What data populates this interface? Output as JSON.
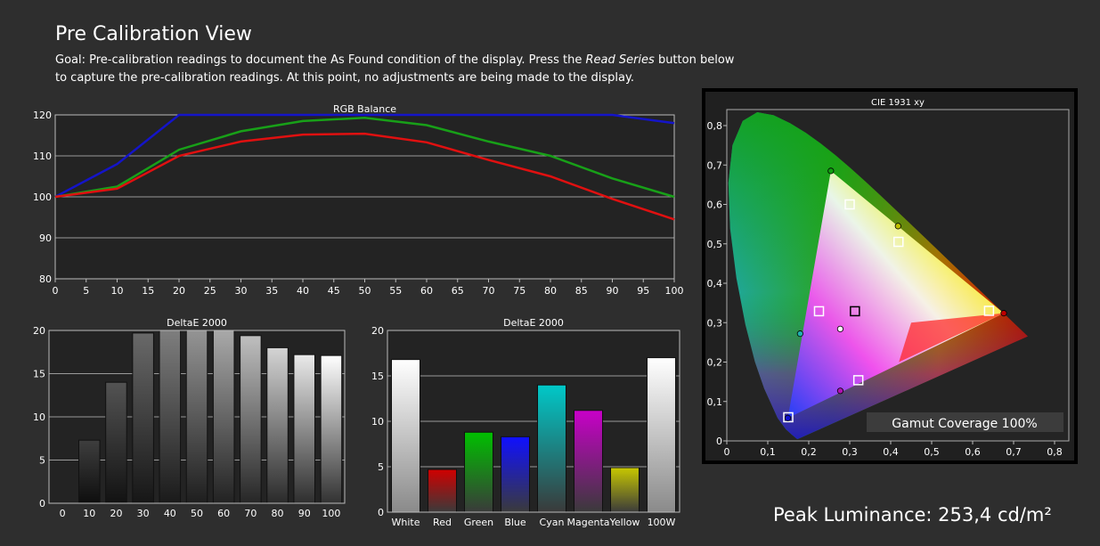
{
  "header": {
    "title": "Pre Calibration View",
    "goal_prefix": "Goal: Pre-calibration readings to document the As Found condition of the display. Press the ",
    "goal_emphasis": "Read Series",
    "goal_suffix": " button below to capture the pre-calibration readings. At this point, no adjustments are being made to the display."
  },
  "peak_luminance": "Peak Luminance: 253,4 cd/m²",
  "colors": {
    "background": "#2e2e2e",
    "plot_background": "#232323",
    "red": "#e01010",
    "green": "#18a018",
    "blue": "#1414c8"
  },
  "chart_data": [
    {
      "type": "line",
      "title": "RGB Balance",
      "xlabel": "",
      "ylabel": "",
      "x": [
        0,
        10,
        20,
        30,
        40,
        50,
        60,
        70,
        80,
        90,
        100
      ],
      "xticks": [
        "0",
        "5",
        "10",
        "15",
        "20",
        "25",
        "30",
        "35",
        "40",
        "45",
        "50",
        "55",
        "60",
        "65",
        "70",
        "75",
        "80",
        "85",
        "90",
        "95",
        "100"
      ],
      "yticks": [
        "80",
        "90",
        "100",
        "110",
        "120"
      ],
      "xlim": [
        0,
        100
      ],
      "ylim": [
        80,
        120
      ],
      "grid": true,
      "series": [
        {
          "color": "#1414c8",
          "values": [
            100,
            108,
            120,
            120,
            120,
            120,
            120,
            120,
            120,
            120,
            118
          ]
        },
        {
          "color": "#18a018",
          "values": [
            100,
            102.5,
            111.5,
            116,
            118.5,
            119.3,
            117.5,
            113.5,
            110,
            104.5,
            100
          ]
        },
        {
          "color": "#e01010",
          "values": [
            100,
            102,
            110,
            113.5,
            115.2,
            115.4,
            113.3,
            109,
            105,
            99.5,
            94.5
          ]
        }
      ]
    },
    {
      "type": "bar",
      "title": "DeltaE 2000",
      "categories": [
        "0",
        "10",
        "20",
        "30",
        "40",
        "50",
        "60",
        "70",
        "80",
        "90",
        "100"
      ],
      "values": [
        0,
        7.3,
        14,
        19.7,
        20.5,
        20.3,
        20.2,
        19.4,
        18,
        17.2,
        17.1
      ],
      "yticks": [
        "0",
        "5",
        "10",
        "15",
        "20"
      ],
      "ylim": [
        0,
        20
      ],
      "grid": true
    },
    {
      "type": "bar",
      "title": "DeltaE 2000",
      "categories": [
        "White",
        "Red",
        "Green",
        "Blue",
        "Cyan",
        "Magenta",
        "Yellow",
        "100W"
      ],
      "values": [
        16.8,
        4.7,
        8.8,
        8.3,
        14,
        11.2,
        4.9,
        17
      ],
      "bar_colors": [
        "#ffffff",
        "#d00000",
        "#00c000",
        "#1010ff",
        "#00c8c8",
        "#c800c8",
        "#c8c800",
        "#ffffff"
      ],
      "yticks": [
        "0",
        "5",
        "10",
        "15",
        "20"
      ],
      "ylim": [
        0,
        20
      ],
      "grid": true
    },
    {
      "type": "scatter",
      "title": "CIE 1931 xy",
      "xticks": [
        "0",
        "0,1",
        "0,2",
        "0,3",
        "0,4",
        "0,5",
        "0,6",
        "0,7",
        "0,8"
      ],
      "yticks": [
        "0",
        "0,1",
        "0,2",
        "0,3",
        "0,4",
        "0,5",
        "0,6",
        "0,7",
        "0,8"
      ],
      "xlim": [
        0,
        0.8
      ],
      "ylim": [
        0,
        0.8
      ],
      "gamut_coverage": "Gamut Coverage 100%",
      "target_points": [
        {
          "label": "red",
          "x": 0.64,
          "y": 0.33
        },
        {
          "label": "green",
          "x": 0.3,
          "y": 0.6
        },
        {
          "label": "blue",
          "x": 0.15,
          "y": 0.06
        },
        {
          "label": "white",
          "x": 0.3127,
          "y": 0.329
        },
        {
          "label": "cyan",
          "x": 0.225,
          "y": 0.329
        },
        {
          "label": "magenta",
          "x": 0.321,
          "y": 0.154
        },
        {
          "label": "yellow",
          "x": 0.419,
          "y": 0.505
        }
      ],
      "measured_points": [
        {
          "label": "red",
          "x": 0.676,
          "y": 0.324
        },
        {
          "label": "green",
          "x": 0.254,
          "y": 0.685
        },
        {
          "label": "blue",
          "x": 0.149,
          "y": 0.058
        },
        {
          "label": "white",
          "x": 0.277,
          "y": 0.284
        },
        {
          "label": "cyan",
          "x": 0.179,
          "y": 0.272
        },
        {
          "label": "magenta",
          "x": 0.277,
          "y": 0.127
        },
        {
          "label": "yellow",
          "x": 0.418,
          "y": 0.545
        }
      ]
    }
  ]
}
